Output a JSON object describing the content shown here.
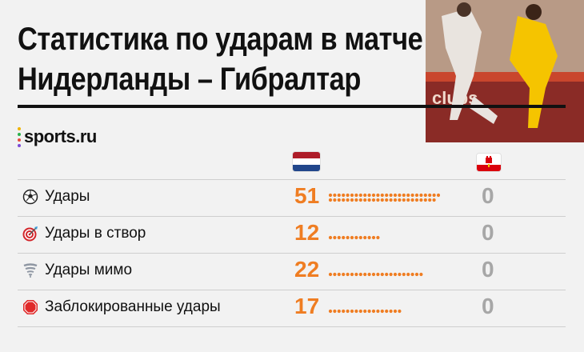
{
  "title_line1": "Статистика по ударам в матче",
  "title_line2": "Нидерланды – Гибралтар",
  "logo": {
    "text": "sports.ru"
  },
  "teams": {
    "home": {
      "flag": "flag-netherlands",
      "colors": [
        "#ae1c28",
        "#ffffff",
        "#21468b"
      ]
    },
    "away": {
      "flag": "flag-gibraltar",
      "colors": [
        "#ffffff",
        "#da000c"
      ]
    }
  },
  "colors": {
    "accent": "#ef7d22",
    "muted": "#a7a7a7"
  },
  "chart_data": {
    "type": "table",
    "rows": [
      {
        "icon": "soccer-ball-icon",
        "label": "Удары",
        "home": 51,
        "away": 0
      },
      {
        "icon": "target-icon",
        "label": "Удары в створ",
        "home": 12,
        "away": 0
      },
      {
        "icon": "tornado-icon",
        "label": "Удары мимо",
        "home": 22,
        "away": 0
      },
      {
        "icon": "stop-sign-icon",
        "label": "Заблокированные удары",
        "home": 17,
        "away": 0
      }
    ]
  }
}
